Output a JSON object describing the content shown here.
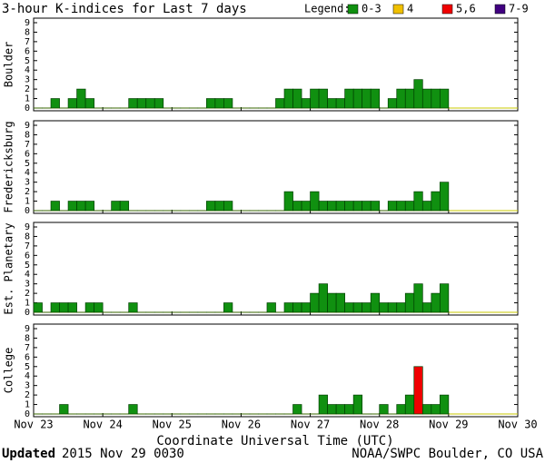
{
  "title": "3-hour K-indices for Last 7 days",
  "legend_title": "Legend:",
  "legend": [
    {
      "label": "0-3",
      "min": 0,
      "max": 3,
      "color": "#109010"
    },
    {
      "label": "4",
      "min": 4,
      "max": 4,
      "color": "#f0c000"
    },
    {
      "label": "5,6",
      "min": 5,
      "max": 6,
      "color": "#f00000"
    },
    {
      "label": "7-9",
      "min": 7,
      "max": 9,
      "color": "#400080"
    }
  ],
  "xlabel": "Coordinate Universal Time (UTC)",
  "xlim": [
    23,
    30
  ],
  "xticks": [
    {
      "value": 23,
      "label": "Nov 23"
    },
    {
      "value": 24,
      "label": "Nov 24"
    },
    {
      "value": 25,
      "label": "Nov 25"
    },
    {
      "value": 26,
      "label": "Nov 26"
    },
    {
      "value": 27,
      "label": "Nov 27"
    },
    {
      "value": 28,
      "label": "Nov 28"
    },
    {
      "value": 29,
      "label": "Nov 29"
    },
    {
      "value": 30,
      "label": "Nov 30"
    }
  ],
  "footer": {
    "updated_label": "Updated",
    "updated": "2015 Nov 29 0030",
    "source": "NOAA/SWPC Boulder, CO USA"
  },
  "chart_data": [
    {
      "type": "bar",
      "ylabel": "Boulder",
      "ylim": [
        0,
        9
      ],
      "yticks": [
        0,
        1,
        2,
        3,
        4,
        5,
        6,
        7,
        8,
        9
      ],
      "values": [
        0,
        0,
        1,
        0,
        1,
        2,
        1,
        0,
        0,
        0,
        0,
        1,
        1,
        1,
        1,
        0,
        0,
        0,
        0,
        0,
        1,
        1,
        1,
        0,
        0,
        0,
        0,
        0,
        1,
        2,
        2,
        1,
        2,
        2,
        1,
        1,
        2,
        2,
        2,
        2,
        0,
        1,
        2,
        2,
        3,
        2,
        2,
        2,
        null,
        null,
        null,
        null,
        null,
        null,
        null,
        null
      ]
    },
    {
      "type": "bar",
      "ylabel": "Fredericksburg",
      "ylim": [
        0,
        9
      ],
      "yticks": [
        0,
        1,
        2,
        3,
        4,
        5,
        6,
        7,
        8,
        9
      ],
      "values": [
        0,
        0,
        1,
        0,
        1,
        1,
        1,
        0,
        0,
        1,
        1,
        0,
        0,
        0,
        0,
        0,
        0,
        0,
        0,
        0,
        1,
        1,
        1,
        0,
        0,
        0,
        0,
        0,
        0,
        2,
        1,
        1,
        2,
        1,
        1,
        1,
        1,
        1,
        1,
        1,
        0,
        1,
        1,
        1,
        2,
        1,
        2,
        3,
        null,
        null,
        null,
        null,
        null,
        null,
        null,
        null
      ]
    },
    {
      "type": "bar",
      "ylabel": "Est. Planetary",
      "ylim": [
        0,
        9
      ],
      "yticks": [
        0,
        1,
        2,
        3,
        4,
        5,
        6,
        7,
        8,
        9
      ],
      "values": [
        1,
        0,
        1,
        1,
        1,
        0,
        1,
        1,
        0,
        0,
        0,
        1,
        0,
        0,
        0,
        0,
        0,
        0,
        0,
        0,
        0,
        0,
        1,
        0,
        0,
        0,
        0,
        1,
        0,
        1,
        1,
        1,
        2,
        3,
        2,
        2,
        1,
        1,
        1,
        2,
        1,
        1,
        1,
        2,
        3,
        1,
        2,
        3,
        null,
        null,
        null,
        null,
        null,
        null,
        null,
        null
      ]
    },
    {
      "type": "bar",
      "ylabel": "College",
      "ylim": [
        0,
        9
      ],
      "yticks": [
        0,
        1,
        2,
        3,
        4,
        5,
        6,
        7,
        8,
        9
      ],
      "values": [
        0,
        0,
        0,
        1,
        0,
        0,
        0,
        0,
        0,
        0,
        0,
        1,
        0,
        0,
        0,
        0,
        0,
        0,
        0,
        0,
        0,
        0,
        0,
        0,
        0,
        0,
        0,
        0,
        0,
        0,
        1,
        0,
        0,
        2,
        1,
        1,
        1,
        2,
        0,
        0,
        1,
        0,
        1,
        2,
        5,
        1,
        1,
        2,
        null,
        null,
        null,
        null,
        null,
        null,
        null,
        null
      ]
    }
  ]
}
